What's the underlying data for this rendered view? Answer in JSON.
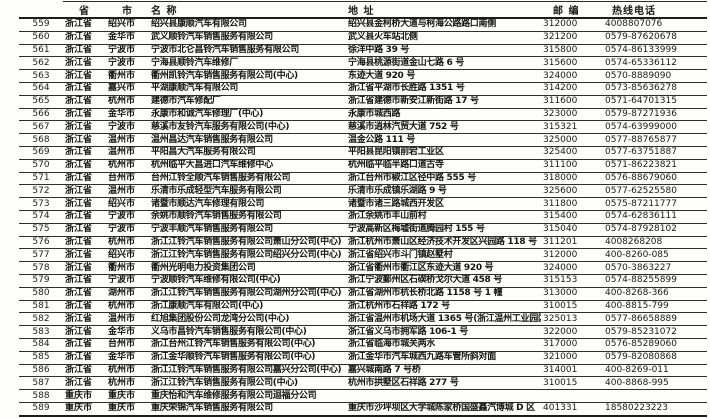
{
  "table": {
    "columns": [
      "",
      "省",
      "市",
      "名 称",
      "地 址",
      "邮 编",
      "热线电话"
    ],
    "column_keys": [
      "no",
      "province",
      "city",
      "name",
      "address",
      "postcode",
      "phone"
    ],
    "rows": [
      [
        "559",
        "浙江省",
        "绍兴市",
        "绍兴县康顺汽车有限公司",
        "绍兴县金柯桥大道与柯海公路路口南侧",
        "312000",
        "4008807076"
      ],
      [
        "560",
        "浙江省",
        "金华市",
        "武义顺铃汽车销售服务有限公司",
        "武义县火车站北侧",
        "321200",
        "0579-87620678"
      ],
      [
        "561",
        "浙江省",
        "宁波市",
        "宁波市北仑昌铃汽车销售服务有限公司",
        "徐洋中路 39 号",
        "315800",
        "0574-86133999"
      ],
      [
        "562",
        "浙江省",
        "宁波市",
        "宁海县顺铃汽车维修厂",
        "宁海县桃源街道金山七路 6 号",
        "315600",
        "0574-65336112"
      ],
      [
        "563",
        "浙江省",
        "衢州市",
        "衢州凯铃汽车销售服务有限公司(中心)",
        "东迹大道 920 号",
        "324000",
        "0570-8889090"
      ],
      [
        "564",
        "浙江省",
        "嘉兴市",
        "平湖康顺汽车有限公司",
        "浙江省平湖市长胜路 1351 号",
        "314200",
        "0573-85636278"
      ],
      [
        "565",
        "浙江省",
        "杭州市",
        "建德市汽车修配厂",
        "浙江省建德市新安江新街路 17 号",
        "311600",
        "0571-64701315"
      ],
      [
        "566",
        "浙江省",
        "金华市",
        "永康市和诚汽车修理厂(中心)",
        "永康市城西路",
        "323000",
        "0579-87271936"
      ],
      [
        "567",
        "浙江省",
        "宁波市",
        "慈溪市友铃汽车服务有限公司(中心)",
        "慈溪市逍林汽贸大道 752 号",
        "315321",
        "0574-63999000"
      ],
      [
        "568",
        "浙江省",
        "温州市",
        "温州昌达汽车销售服务有限公司",
        "温金公路 111 号",
        "325000",
        "0577-88765877"
      ],
      [
        "569",
        "浙江省",
        "温州市",
        "平阳昌大汽车服务有限公司",
        "平阳县昆阳镇前宕工业区",
        "325400",
        "0577-63751887"
      ],
      [
        "570",
        "浙江省",
        "杭州市",
        "杭州临平大昌进口汽车维修中心",
        "杭州临平临半路口道古寺",
        "311100",
        "0571-86223821"
      ],
      [
        "571",
        "浙江省",
        "台州市",
        "台州江铃全顺汽车销售服务有限公司",
        "浙江台州市椒江区径中路 555 号",
        "318000",
        "0576-88679060"
      ],
      [
        "572",
        "浙江省",
        "温州市",
        "乐清市乐成轻型汽车服务有限公司",
        "乐清市乐成镇乐湖路 9 号",
        "325600",
        "0577-62525580"
      ],
      [
        "573",
        "浙江省",
        "绍兴市",
        "诸暨市顺达汽车修理有限公司",
        "诸暨市诸三路城西开发区",
        "311800",
        "0575-87211777"
      ],
      [
        "574",
        "浙江省",
        "宁波市",
        "余姚市顺铃汽车销售服务有限公司",
        "浙江余姚市丰山前村",
        "315400",
        "0574-62836111"
      ],
      [
        "575",
        "浙江省",
        "宁波市",
        "宁波丰顺汽车销售服务有限公司",
        "宁波高新区梅墟街道腾园村 155 号",
        "315040",
        "0574-87928102"
      ],
      [
        "576",
        "浙江省",
        "杭州市",
        "浙江江铃汽车销售服务有限公司萧山分公司(中心)",
        "浙江杭州市萧山区经济技术开发区兴园路 118 号",
        "311201",
        "4008268208"
      ],
      [
        "577",
        "浙江省",
        "绍兴市",
        "浙江江铃汽车销售服务有限公司绍兴分公司(中心)",
        "浙江省绍兴市斗门镇赵墅村",
        "312000",
        "400-8260-085"
      ],
      [
        "578",
        "浙江省",
        "衢州市",
        "衢州光明电力投资集团公司",
        "浙江省衢州市衢江区东迹大道 920 号",
        "324000",
        "0570-3863227"
      ],
      [
        "579",
        "浙江省",
        "宁波市",
        "宁波顺铃汽车维修有限公司(中心)",
        "浙江宁波鄞州区石碶桥戈尔大道 458 号",
        "315153",
        "0574-88255899"
      ],
      [
        "580",
        "浙江省",
        "湖州市",
        "浙江江铃汽车销售服务有限公司湖州分公司(中心)",
        "浙江省湖州市杭长桥北路 1158 号 1 幢",
        "313000",
        "400-8268-366"
      ],
      [
        "581",
        "浙江省",
        "杭州市",
        "浙江康顺汽车有限公司(中心)",
        "浙江杭州市石祥路 172 号",
        "310015",
        "400-8815-799"
      ],
      [
        "582",
        "浙江省",
        "温州市",
        "红旭集团股份公司龙湾分公司(中心)",
        "浙江省温州市机场大道 1365 号(浙江温州工业园区)",
        "325013",
        "0577-86658889"
      ],
      [
        "583",
        "浙江省",
        "金华市",
        "义乌市昌铃汽车销售服务有限公司(中心)",
        "浙江省义乌市拥军路 106-1 号",
        "322000",
        "0579-85231072"
      ],
      [
        "584",
        "浙江省",
        "台州市",
        "浙江台州江铃汽车销售服务有限公司(中心)",
        "浙江省临海市城关两水",
        "317000",
        "0576-85289060"
      ],
      [
        "585",
        "浙江省",
        "金华市",
        "浙江金华顺铃汽车销售服务有限公司(中心)",
        "浙江金华市汽车城西九路车管所斜对面",
        "321000",
        "0579-82080868"
      ],
      [
        "586",
        "浙江省",
        "杭州市",
        "浙江江铃汽车销售服务有限公司嘉兴分公司(中心)",
        "嘉兴城南路 7 号桥",
        "314001",
        "400-8269-011"
      ],
      [
        "587",
        "浙江省",
        "杭州市",
        "浙江江铃汽车销售服务有限公司(中心)",
        "杭州市拱墅区石祥路 277 号",
        "310015",
        "400-8868-995"
      ],
      [
        "588",
        "重庆市",
        "重庆市",
        "重庆怡和汽车维修服务有限公司迴福分公司",
        "",
        "",
        ""
      ],
      [
        "589",
        "重庆市",
        "重庆市",
        "重庆荣锦汽车销售服务有限公司",
        "重庆市沙坪坝区大学城陈家桥国盛鑫汽博城 D 区",
        "401331",
        "18580223223"
      ]
    ]
  }
}
